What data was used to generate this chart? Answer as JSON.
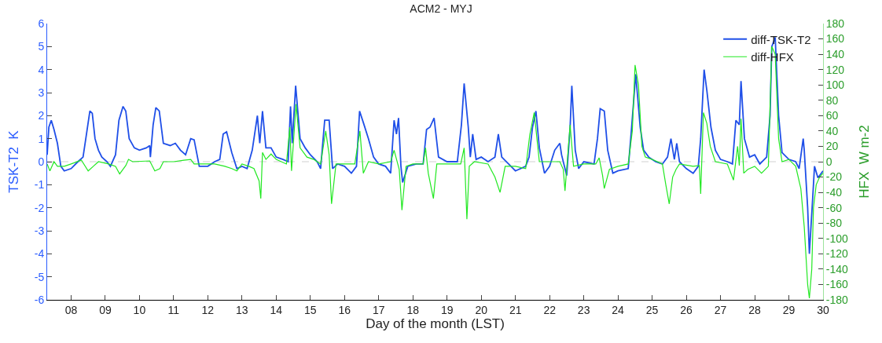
{
  "chart_data": {
    "type": "line",
    "title": "ACM2 - MYJ",
    "xlabel": "Day of the month (LST)",
    "ylabel": "TSK-T2  K",
    "y2label": "HFX  W m-2",
    "xlim": [
      7.3,
      30
    ],
    "xticks": [
      {
        "value": 8,
        "label": "08"
      },
      {
        "value": 9,
        "label": "09"
      },
      10,
      11,
      12,
      13,
      14,
      15,
      16,
      17,
      18,
      19,
      20,
      21,
      22,
      23,
      24,
      25,
      26,
      27,
      28,
      29,
      30
    ],
    "ylim": [
      -6,
      6
    ],
    "yticks": [
      -6,
      -5,
      -4,
      -3,
      -2,
      -1,
      0,
      1,
      2,
      3,
      4,
      5,
      6
    ],
    "y2lim": [
      -180,
      180
    ],
    "y2ticks": [
      -180,
      -160,
      -140,
      -120,
      -100,
      -80,
      -60,
      -40,
      -20,
      0,
      20,
      40,
      60,
      80,
      100,
      120,
      140,
      160,
      180
    ],
    "legend": "top right",
    "grid": false,
    "ref_lines": [
      {
        "axis": "y",
        "value": 0,
        "color": "#d0d0d0",
        "line_style": "dashed"
      }
    ],
    "series": [
      {
        "name": "diff-TSK-T2",
        "color": "#1f4fe8",
        "x": [
          7.3,
          7.35,
          7.42,
          7.5,
          7.6,
          7.7,
          7.8,
          8.0,
          8.2,
          8.35,
          8.45,
          8.55,
          8.62,
          8.7,
          8.8,
          8.9,
          9.05,
          9.15,
          9.3,
          9.4,
          9.52,
          9.6,
          9.7,
          9.85,
          10.0,
          10.2,
          10.3,
          10.32,
          10.4,
          10.48,
          10.58,
          10.7,
          10.9,
          11.05,
          11.2,
          11.35,
          11.5,
          11.6,
          11.75,
          12.0,
          12.2,
          12.35,
          12.45,
          12.55,
          12.7,
          12.85,
          13.0,
          13.15,
          13.3,
          13.45,
          13.52,
          13.6,
          13.7,
          13.85,
          14.0,
          14.2,
          14.35,
          14.42,
          14.47,
          14.57,
          14.7,
          14.85,
          15.0,
          15.2,
          15.3,
          15.42,
          15.55,
          15.65,
          15.8,
          16.0,
          16.2,
          16.35,
          16.44,
          16.55,
          16.7,
          16.85,
          17.0,
          17.2,
          17.35,
          17.45,
          17.52,
          17.58,
          17.65,
          17.7,
          17.85,
          18.1,
          18.3,
          18.4,
          18.5,
          18.62,
          18.75,
          19.0,
          19.3,
          19.42,
          19.5,
          19.62,
          19.68,
          19.75,
          19.85,
          20.0,
          20.2,
          20.4,
          20.5,
          20.6,
          20.8,
          21.0,
          21.3,
          21.4,
          21.5,
          21.6,
          21.7,
          21.85,
          22.0,
          22.15,
          22.3,
          22.35,
          22.5,
          22.6,
          22.65,
          22.75,
          22.85,
          23.0,
          23.3,
          23.4,
          23.48,
          23.6,
          23.7,
          23.85,
          24.0,
          24.3,
          24.4,
          24.52,
          24.65,
          24.75,
          24.9,
          25.1,
          25.3,
          25.45,
          25.55,
          25.65,
          25.72,
          25.8,
          26.0,
          26.2,
          26.35,
          26.42,
          26.52,
          26.6,
          26.72,
          26.85,
          27.0,
          27.2,
          27.35,
          27.45,
          27.55,
          27.6,
          27.7,
          27.85,
          28.0,
          28.15,
          28.35,
          28.45,
          28.5,
          28.6,
          28.7,
          28.8,
          29.0,
          29.2,
          29.3,
          29.42,
          29.45,
          29.55,
          29.6,
          29.7,
          29.75,
          29.85,
          30.0
        ],
        "values": [
          0.3,
          1.5,
          1.8,
          1.4,
          0.8,
          -0.2,
          -0.4,
          -0.3,
          0.0,
          0.2,
          1.2,
          2.2,
          2.1,
          1.0,
          0.5,
          0.2,
          0.0,
          -0.2,
          0.3,
          1.8,
          2.4,
          2.2,
          1.0,
          0.6,
          0.5,
          0.6,
          0.7,
          0.2,
          1.6,
          2.35,
          2.2,
          0.8,
          0.7,
          0.8,
          0.5,
          0.3,
          1.0,
          0.95,
          -0.2,
          -0.2,
          0.0,
          0.1,
          1.2,
          1.3,
          0.4,
          -0.3,
          -0.2,
          -0.3,
          0.5,
          2.0,
          0.8,
          2.2,
          0.6,
          0.6,
          0.2,
          0.1,
          0.0,
          2.4,
          0.8,
          3.3,
          1.0,
          0.6,
          0.3,
          0.0,
          -0.3,
          1.8,
          1.8,
          -0.3,
          -0.1,
          -0.2,
          -0.5,
          -0.2,
          2.2,
          1.7,
          1.0,
          0.2,
          -0.1,
          -0.2,
          -0.5,
          1.8,
          1.2,
          1.9,
          -0.2,
          -0.9,
          -0.2,
          -0.1,
          -0.1,
          1.4,
          1.5,
          1.9,
          0.2,
          0.0,
          0.0,
          1.6,
          3.4,
          1.5,
          0.2,
          1.2,
          0.1,
          0.2,
          0.0,
          0.2,
          1.2,
          0.2,
          -0.1,
          -0.4,
          -0.2,
          0.2,
          1.5,
          2.2,
          0.6,
          -0.5,
          -0.2,
          0.5,
          0.8,
          0.3,
          -0.6,
          1.5,
          3.3,
          0.5,
          -0.3,
          0.0,
          -0.1,
          1.0,
          2.3,
          2.2,
          0.5,
          -0.5,
          -0.4,
          -0.3,
          1.5,
          3.8,
          1.5,
          0.5,
          0.2,
          0.0,
          -0.1,
          0.2,
          1.0,
          0.1,
          0.8,
          0.0,
          -0.3,
          -0.5,
          -0.2,
          1.0,
          4.0,
          3.1,
          1.5,
          0.5,
          0.1,
          0.0,
          -0.1,
          1.8,
          1.6,
          3.5,
          1.0,
          0.2,
          0.3,
          -0.1,
          0.2,
          2.0,
          5.0,
          5.4,
          2.0,
          0.4,
          0.1,
          0.0,
          -0.3,
          1.0,
          0.5,
          -2.0,
          -4.0,
          -1.5,
          -0.2,
          -0.7,
          -0.4
        ]
      },
      {
        "name": "diff-HFX",
        "color": "#22e822",
        "axis": "y2",
        "x": [
          7.3,
          7.38,
          7.5,
          7.6,
          7.8,
          8.0,
          8.3,
          8.5,
          8.65,
          8.8,
          9.1,
          9.3,
          9.42,
          9.6,
          9.68,
          9.8,
          10.3,
          10.45,
          10.6,
          10.7,
          11.0,
          11.3,
          11.5,
          11.6,
          11.8,
          12.2,
          12.5,
          12.7,
          12.85,
          13.0,
          13.2,
          13.35,
          13.5,
          13.55,
          13.6,
          13.7,
          13.85,
          14.0,
          14.3,
          14.4,
          14.45,
          14.58,
          14.7,
          14.9,
          15.1,
          15.3,
          15.45,
          15.55,
          15.62,
          15.75,
          16.0,
          16.3,
          16.45,
          16.55,
          16.7,
          17.0,
          17.35,
          17.45,
          17.6,
          17.68,
          17.8,
          18.0,
          18.3,
          18.37,
          18.45,
          18.6,
          18.7,
          19.0,
          19.4,
          19.5,
          19.58,
          19.65,
          19.8,
          20.2,
          20.4,
          20.55,
          20.7,
          21.0,
          21.3,
          21.42,
          21.55,
          21.7,
          22.0,
          22.3,
          22.4,
          22.45,
          22.6,
          22.7,
          23.0,
          23.35,
          23.45,
          23.55,
          23.6,
          23.75,
          24.0,
          24.3,
          24.42,
          24.5,
          24.6,
          24.7,
          24.8,
          25.0,
          25.3,
          25.4,
          25.5,
          25.6,
          25.7,
          25.8,
          26.2,
          26.38,
          26.42,
          26.5,
          26.6,
          26.7,
          26.85,
          27.2,
          27.38,
          27.5,
          27.55,
          27.6,
          27.68,
          27.8,
          28.0,
          28.2,
          28.4,
          28.5,
          28.6,
          28.7,
          28.8,
          29.0,
          29.2,
          29.35,
          29.45,
          29.55,
          29.6,
          29.67,
          29.72,
          29.8,
          29.9,
          30.0
        ],
        "values": [
          -3,
          -12,
          0,
          -6,
          -6,
          -3,
          2,
          -12,
          -6,
          0,
          -3,
          -6,
          -16,
          -5,
          3,
          0,
          1,
          -12,
          -9,
          0,
          0,
          2,
          3,
          -3,
          -3,
          -3,
          -6,
          -9,
          -12,
          -3,
          -6,
          -9,
          -25,
          -48,
          12,
          3,
          10,
          3,
          -3,
          45,
          -12,
          75,
          18,
          6,
          3,
          -3,
          40,
          9,
          -55,
          -3,
          -3,
          -3,
          40,
          -15,
          0,
          -3,
          0,
          15,
          -10,
          -63,
          -6,
          -3,
          -3,
          18,
          -15,
          -48,
          -3,
          -3,
          -3,
          18,
          -75,
          -6,
          0,
          -3,
          -20,
          -40,
          -6,
          -6,
          -9,
          35,
          64,
          0,
          0,
          0,
          -10,
          -38,
          48,
          -6,
          -3,
          -3,
          5,
          -18,
          -35,
          -10,
          -6,
          -3,
          40,
          126,
          100,
          20,
          6,
          3,
          -3,
          -30,
          -55,
          -20,
          -10,
          -3,
          -6,
          -5,
          -42,
          64,
          50,
          20,
          0,
          -3,
          -24,
          20,
          -5,
          56,
          -15,
          -10,
          -6,
          -15,
          -6,
          150,
          140,
          30,
          0,
          3,
          -6,
          -35,
          -85,
          -160,
          -178,
          -140,
          -60,
          -30,
          -20,
          -15
        ]
      }
    ]
  }
}
